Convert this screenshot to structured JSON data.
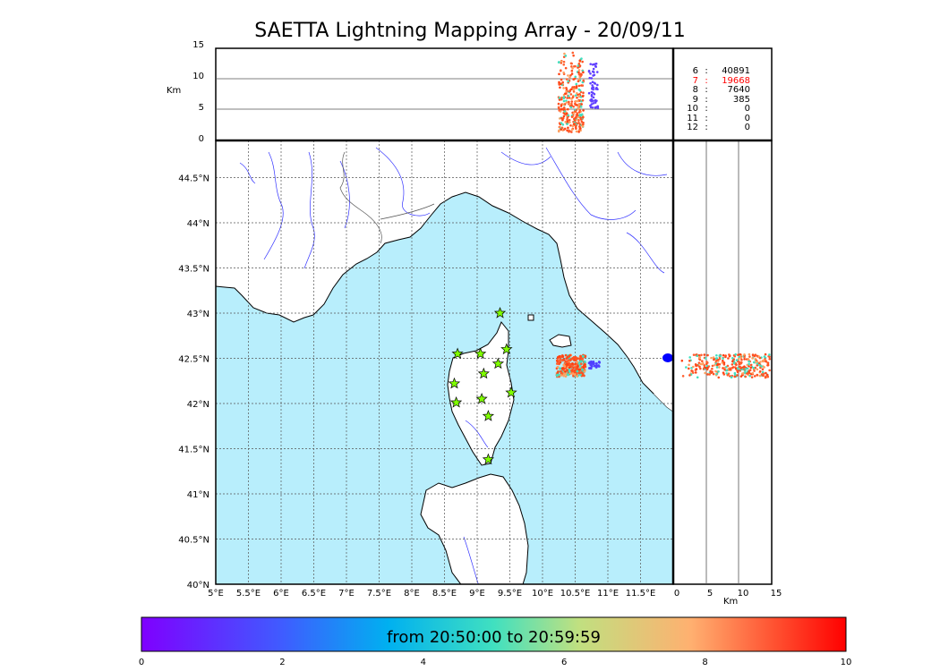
{
  "title": "SAETTA Lightning Mapping Array - 20/09/11",
  "altitude_panel": {
    "ylabel": "Km",
    "yticks": [
      "0",
      "5",
      "10",
      "15"
    ]
  },
  "stats": [
    {
      "k": "6",
      "v": "40891",
      "color": "#000000"
    },
    {
      "k": "7",
      "v": "19668",
      "color": "#ff0000"
    },
    {
      "k": "8",
      "v": "7640",
      "color": "#000000"
    },
    {
      "k": "9",
      "v": "385",
      "color": "#000000"
    },
    {
      "k": "10",
      "v": "0",
      "color": "#000000"
    },
    {
      "k": "11",
      "v": "0",
      "color": "#000000"
    },
    {
      "k": "12",
      "v": "0",
      "color": "#000000"
    }
  ],
  "map": {
    "lat_labels": [
      "40°N",
      "40.5°N",
      "41°N",
      "41.5°N",
      "42°N",
      "42.5°N",
      "43°N",
      "43.5°N",
      "44°N",
      "44.5°N"
    ],
    "lon_labels": [
      "5°E",
      "5.5°E",
      "6°E",
      "6.5°E",
      "7°E",
      "7.5°E",
      "8°E",
      "8.5°E",
      "9°E",
      "9.5°E",
      "10°E",
      "10.5°E",
      "11°E",
      "11.5°E"
    ],
    "sea_color": "#b8eefc",
    "station_color": "#80ff00",
    "stations": [
      {
        "lon": 9.35,
        "lat": 43.0
      },
      {
        "lon": 8.7,
        "lat": 42.55
      },
      {
        "lon": 9.05,
        "lat": 42.55
      },
      {
        "lon": 9.45,
        "lat": 42.6
      },
      {
        "lon": 9.1,
        "lat": 42.33
      },
      {
        "lon": 9.32,
        "lat": 42.44
      },
      {
        "lon": 8.65,
        "lat": 42.22
      },
      {
        "lon": 8.68,
        "lat": 42.01
      },
      {
        "lon": 9.07,
        "lat": 42.05
      },
      {
        "lon": 9.52,
        "lat": 42.12
      },
      {
        "lon": 9.17,
        "lat": 41.86
      },
      {
        "lon": 9.17,
        "lat": 41.38
      }
    ]
  },
  "side_panel": {
    "xlabel": "Km",
    "xticks": [
      "0",
      "5",
      "10",
      "15"
    ]
  },
  "colorbar": {
    "label": "from 20:50:00 to 20:59:59",
    "ticks": [
      "0",
      "2",
      "4",
      "6",
      "8",
      "10"
    ]
  }
}
